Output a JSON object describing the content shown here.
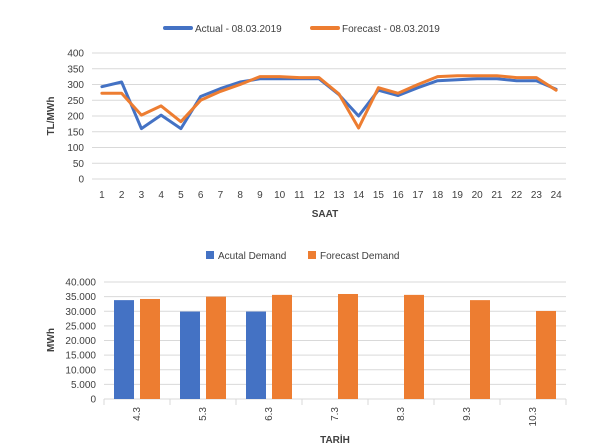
{
  "chart_data": [
    {
      "type": "line",
      "title": "",
      "xlabel": "SAAT",
      "ylabel": "TL/MWh",
      "ylim": [
        0,
        400
      ],
      "yticks": [
        "0",
        "50",
        "100",
        "150",
        "200",
        "250",
        "300",
        "350",
        "400"
      ],
      "categories": [
        "1",
        "2",
        "3",
        "4",
        "5",
        "6",
        "7",
        "8",
        "9",
        "10",
        "11",
        "12",
        "13",
        "14",
        "15",
        "16",
        "17",
        "18",
        "19",
        "20",
        "21",
        "22",
        "23",
        "24"
      ],
      "grid": true,
      "legend": "top",
      "series": [
        {
          "name": "Actual - 08.03.2019",
          "color": "#4472C4",
          "values": [
            293,
            308,
            160,
            203,
            160,
            262,
            287,
            308,
            318,
            318,
            318,
            318,
            268,
            200,
            282,
            265,
            290,
            312,
            315,
            318,
            318,
            312,
            312,
            285
          ]
        },
        {
          "name": "Forecast - 08.03.2019",
          "color": "#ED7D31",
          "values": [
            272,
            272,
            203,
            232,
            182,
            250,
            278,
            300,
            325,
            325,
            322,
            322,
            270,
            162,
            290,
            272,
            300,
            325,
            328,
            328,
            328,
            322,
            322,
            282
          ]
        }
      ]
    },
    {
      "type": "bar",
      "title": "",
      "xlabel": "TARİH",
      "ylabel": "MWh",
      "ylim": [
        0,
        40000
      ],
      "yticks": [
        "0",
        "5.000",
        "10.000",
        "15.000",
        "20.000",
        "25.000",
        "30.000",
        "35.000",
        "40.000"
      ],
      "categories": [
        "4.3",
        "5.3",
        "6.3",
        "7.3",
        "8.3",
        "9.3",
        "10.3"
      ],
      "grid": true,
      "legend": "top",
      "series": [
        {
          "name": "Acutal Demand",
          "color": "#4472C4",
          "values": [
            33800,
            29900,
            29900,
            null,
            null,
            null,
            null
          ]
        },
        {
          "name": "Forecast Demand",
          "color": "#ED7D31",
          "values": [
            34200,
            35000,
            35600,
            35900,
            35600,
            33800,
            30100
          ]
        }
      ]
    }
  ]
}
